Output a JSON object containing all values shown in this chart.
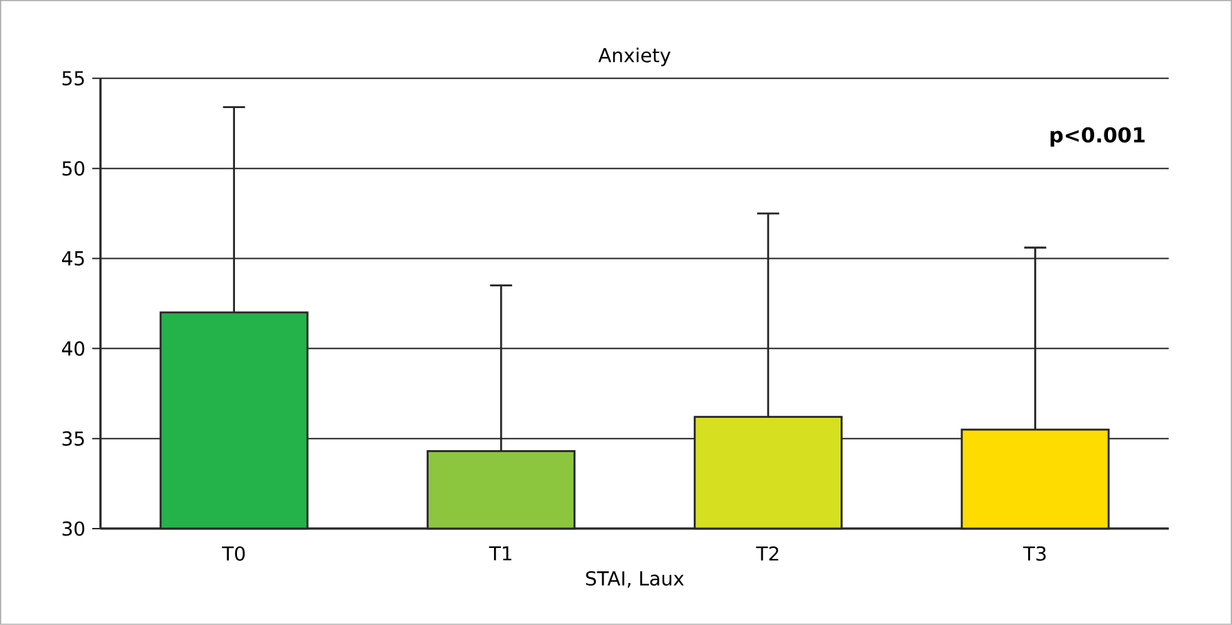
{
  "chart_data": {
    "type": "bar",
    "title": "Anxiety",
    "xlabel": "STAI, Laux",
    "categories": [
      "T0",
      "T1",
      "T2",
      "T3"
    ],
    "values": [
      42.0,
      34.3,
      36.2,
      35.5
    ],
    "errors": [
      [
        42.0,
        53.4
      ],
      [
        34.3,
        43.5
      ],
      [
        36.2,
        47.5
      ],
      [
        35.5,
        45.6
      ]
    ],
    "colors": [
      "#24b24b",
      "#8cc63f",
      "#d7df21",
      "#ffdc00"
    ],
    "ylim": [
      30,
      55
    ],
    "yticks": [
      30,
      35,
      40,
      45,
      50,
      55
    ],
    "grid": "y",
    "annotations": [
      "**p<0.001**"
    ]
  }
}
